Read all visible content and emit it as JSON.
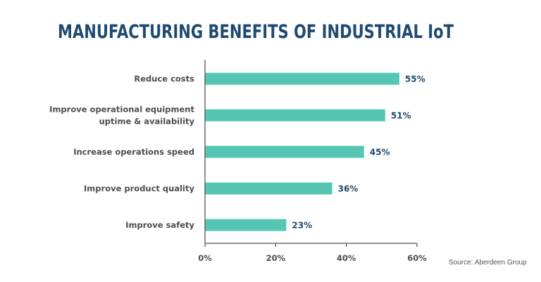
{
  "chart_data": {
    "type": "bar",
    "orientation": "horizontal",
    "title": "MANUFACTURING BENEFITS OF INDUSTRIAL IoT",
    "categories": [
      [
        "Reduce costs"
      ],
      [
        "Improve operational equipment",
        "uptime & availability"
      ],
      [
        "Increase operations speed"
      ],
      [
        "Improve product quality"
      ],
      [
        "Improve safety"
      ]
    ],
    "values": [
      55,
      51,
      45,
      36,
      23
    ],
    "value_labels": [
      "55%",
      "51%",
      "45%",
      "36%",
      "23%"
    ],
    "xlim": [
      0,
      60
    ],
    "x_ticks": [
      0,
      20,
      40,
      60
    ],
    "x_tick_labels": [
      "0%",
      "20%",
      "40%",
      "60%"
    ],
    "xlabel": "",
    "ylabel": "",
    "grid": false,
    "bar_color": "#55c5b4",
    "title_color": "#1f4a70",
    "source": "Source: Aberdeen Group"
  }
}
